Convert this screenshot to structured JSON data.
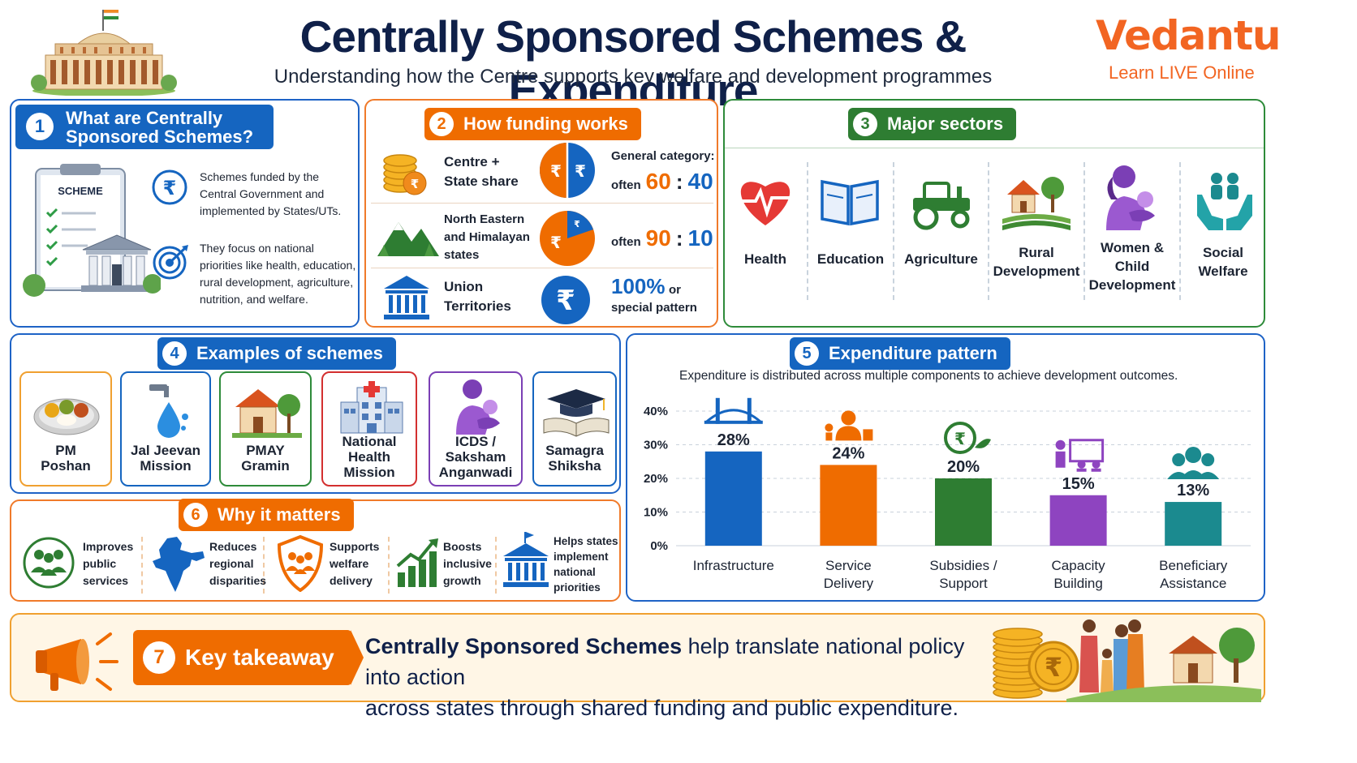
{
  "header": {
    "title": "Centrally Sponsored Schemes & Expenditure",
    "subtitle": "Understanding how the Centre supports key welfare and development programmes",
    "brand": "Vedantu",
    "brand_tagline": "Learn LIVE Online"
  },
  "colors": {
    "blue": "#1565c0",
    "orange": "#ef6c00",
    "green": "#2e7d32",
    "purple": "#7b3fb5",
    "teal": "#1b8a8f",
    "navy": "#0f2049"
  },
  "section1": {
    "number": "1",
    "title_line1": "What are Centrally",
    "title_line2": "Sponsored Schemes?",
    "clipboard_label": "SCHEME",
    "points": [
      {
        "icon": "rupee-icon",
        "lines": [
          "Schemes funded by the",
          "Central Government and",
          "implemented by States/UTs."
        ]
      },
      {
        "icon": "target-icon",
        "lines": [
          "They focus on national",
          "priorities like health, education,",
          "rural development, agriculture,",
          "nutrition, and welfare."
        ]
      }
    ]
  },
  "section2": {
    "number": "2",
    "title": "How funding works",
    "rows": [
      {
        "label_lines": [
          "Centre +",
          "State share"
        ],
        "top": "General category:",
        "prefix": "often",
        "left": "60",
        "sep": ":",
        "right": "40",
        "centre_share": 60
      },
      {
        "label_lines": [
          "North Eastern",
          "and Himalayan",
          "states"
        ],
        "prefix": "often",
        "left": "90",
        "sep": ":",
        "right": "10",
        "centre_share": 90
      },
      {
        "label_lines": [
          "Union",
          "Territories"
        ],
        "big": "100%",
        "or": "or",
        "bottom": "special pattern",
        "centre_share": 100
      }
    ]
  },
  "section3": {
    "number": "3",
    "title": "Major sectors",
    "sectors": [
      {
        "icon": "heart-icon",
        "lines": [
          "Health"
        ]
      },
      {
        "icon": "book-icon",
        "lines": [
          "Education"
        ]
      },
      {
        "icon": "tractor-icon",
        "lines": [
          "Agriculture"
        ]
      },
      {
        "icon": "village-icon",
        "lines": [
          "Rural",
          "Development"
        ]
      },
      {
        "icon": "mother-child-icon",
        "lines": [
          "Women &",
          "Child",
          "Development"
        ]
      },
      {
        "icon": "hands-people-icon",
        "lines": [
          "Social",
          "Welfare"
        ]
      }
    ]
  },
  "section4": {
    "number": "4",
    "title": "Examples of schemes",
    "schemes": [
      {
        "icon": "thali-icon",
        "lines": [
          "PM",
          "Poshan"
        ],
        "color": "#f0a030"
      },
      {
        "icon": "water-tap-icon",
        "lines": [
          "Jal Jeevan",
          "Mission"
        ],
        "color": "#1565c0"
      },
      {
        "icon": "house-icon",
        "lines": [
          "PMAY",
          "Gramin"
        ],
        "color": "#2e7d32"
      },
      {
        "icon": "hospital-icon",
        "lines": [
          "National",
          "Health",
          "Mission"
        ],
        "color": "#d32f2f"
      },
      {
        "icon": "mother-child-icon",
        "lines": [
          "ICDS /",
          "Saksham",
          "Anganwadi"
        ],
        "color": "#7b3fb5"
      },
      {
        "icon": "graduation-cap-icon",
        "lines": [
          "Samagra",
          "Shiksha"
        ],
        "color": "#1565c0"
      }
    ]
  },
  "section5": {
    "number": "5",
    "title": "Expenditure pattern",
    "description": "Expenditure is distributed across multiple components to achieve development outcomes."
  },
  "chart_data": {
    "type": "bar",
    "categories": [
      "Infrastructure",
      "Service Delivery",
      "Subsidies / Support",
      "Capacity Building",
      "Beneficiary Assistance"
    ],
    "category_lines": [
      [
        "Infrastructure"
      ],
      [
        "Service",
        "Delivery"
      ],
      [
        "Subsidies /",
        "Support"
      ],
      [
        "Capacity",
        "Building"
      ],
      [
        "Beneficiary",
        "Assistance"
      ]
    ],
    "values": [
      28,
      24,
      20,
      15,
      13
    ],
    "value_labels": [
      "28%",
      "24%",
      "20%",
      "15%",
      "13%"
    ],
    "colors": [
      "#1565c0",
      "#ef6c00",
      "#2e7d32",
      "#8e44c0",
      "#1b8a8f"
    ],
    "icons": [
      "bridge-icon",
      "service-worker-icon",
      "rupee-plant-icon",
      "training-board-icon",
      "people-group-icon"
    ],
    "yticks": [
      "0%",
      "10%",
      "20%",
      "30%",
      "40%"
    ],
    "ylim": [
      0,
      40
    ],
    "grid": true
  },
  "section6": {
    "number": "6",
    "title": "Why it matters",
    "items": [
      {
        "icon": "community-icon",
        "lines": [
          "Improves",
          "public",
          "services"
        ]
      },
      {
        "icon": "india-map-icon",
        "lines": [
          "Reduces",
          "regional",
          "disparities"
        ]
      },
      {
        "icon": "shield-people-icon",
        "lines": [
          "Supports",
          "welfare",
          "delivery"
        ]
      },
      {
        "icon": "growth-chart-icon",
        "lines": [
          "Boosts",
          "inclusive",
          "growth"
        ]
      },
      {
        "icon": "government-building-icon",
        "lines": [
          "Helps states",
          "implement",
          "national",
          "priorities"
        ]
      }
    ]
  },
  "section7": {
    "number": "7",
    "title": "Key takeaway",
    "text_bold": "Centrally Sponsored Schemes",
    "text_rest1": " help translate national policy into action",
    "text_line2": "across states through shared funding and public expenditure."
  }
}
